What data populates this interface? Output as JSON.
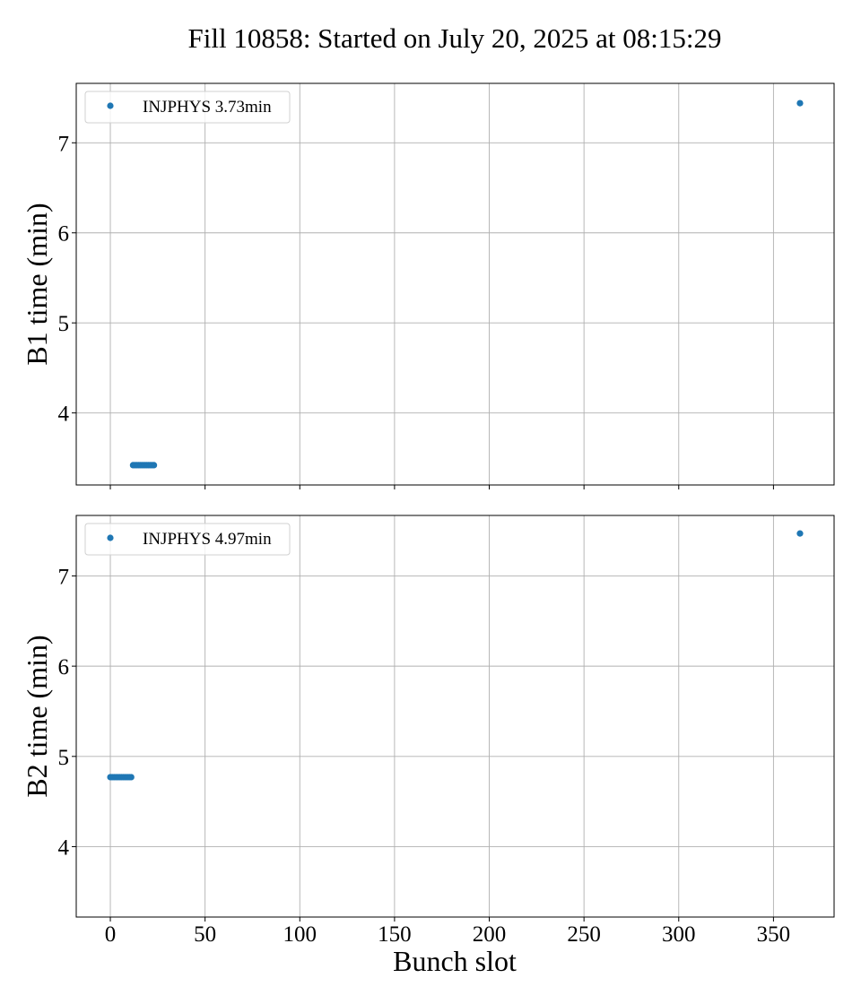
{
  "chart_data": {
    "type": "scatter",
    "title": "Fill 10858: Started on July 20, 2025 at 08:15:29",
    "xlabel": "Bunch slot",
    "xlim": [
      -18,
      382
    ],
    "x_ticks": [
      0,
      50,
      100,
      150,
      200,
      250,
      300,
      350
    ],
    "grid": true,
    "marker_color": "#1f77b4",
    "panels": [
      {
        "ylabel": "B1 time (min)",
        "ylim": [
          3.2,
          7.66
        ],
        "y_ticks": [
          4,
          5,
          6,
          7
        ],
        "legend_position": "upper-left",
        "series": [
          {
            "name": "INJPHYS 3.73min",
            "points": [
              {
                "x": 12,
                "y": 3.42
              },
              {
                "x": 13,
                "y": 3.42
              },
              {
                "x": 14,
                "y": 3.42
              },
              {
                "x": 15,
                "y": 3.42
              },
              {
                "x": 16,
                "y": 3.42
              },
              {
                "x": 17,
                "y": 3.42
              },
              {
                "x": 18,
                "y": 3.42
              },
              {
                "x": 19,
                "y": 3.42
              },
              {
                "x": 20,
                "y": 3.42
              },
              {
                "x": 21,
                "y": 3.42
              },
              {
                "x": 22,
                "y": 3.42
              },
              {
                "x": 23,
                "y": 3.42
              },
              {
                "x": 364,
                "y": 7.44
              }
            ]
          }
        ]
      },
      {
        "ylabel": "B2 time (min)",
        "ylim": [
          3.22,
          7.67
        ],
        "y_ticks": [
          4,
          5,
          6,
          7
        ],
        "legend_position": "upper-left",
        "series": [
          {
            "name": "INJPHYS 4.97min",
            "points": [
              {
                "x": 0,
                "y": 4.77
              },
              {
                "x": 1,
                "y": 4.77
              },
              {
                "x": 2,
                "y": 4.77
              },
              {
                "x": 3,
                "y": 4.77
              },
              {
                "x": 4,
                "y": 4.77
              },
              {
                "x": 5,
                "y": 4.77
              },
              {
                "x": 6,
                "y": 4.77
              },
              {
                "x": 7,
                "y": 4.77
              },
              {
                "x": 8,
                "y": 4.77
              },
              {
                "x": 9,
                "y": 4.77
              },
              {
                "x": 10,
                "y": 4.77
              },
              {
                "x": 11,
                "y": 4.77
              },
              {
                "x": 364,
                "y": 7.47
              }
            ]
          }
        ]
      }
    ]
  }
}
